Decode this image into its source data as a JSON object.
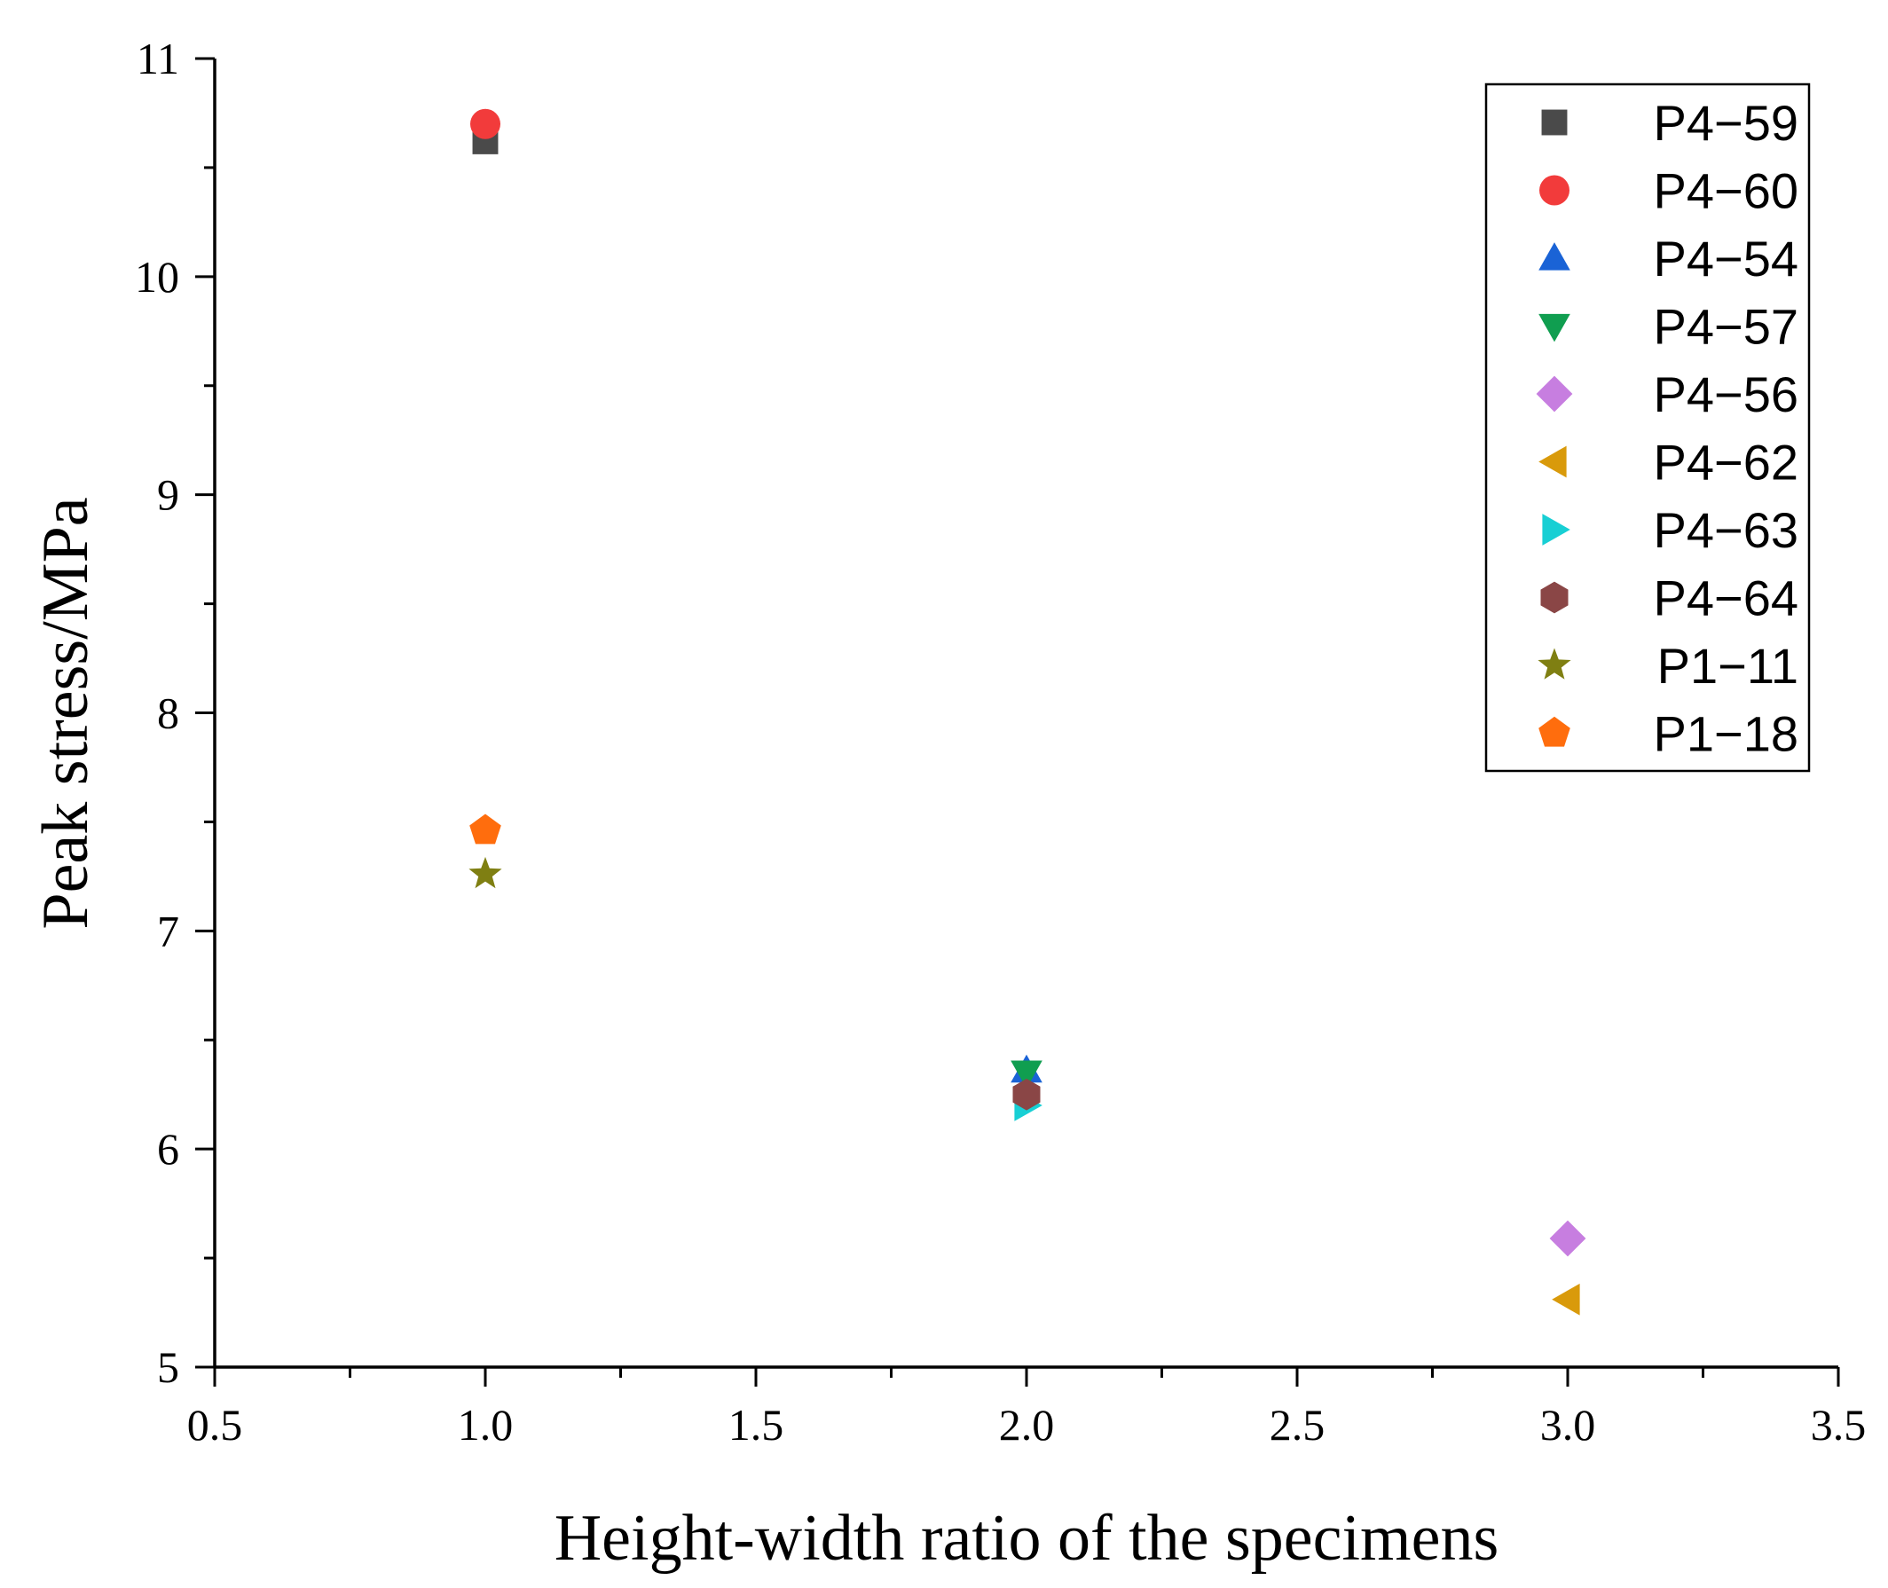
{
  "chart_data": {
    "type": "scatter",
    "xlabel": "Height-width ratio of the specimens",
    "ylabel": "Peak stress/MPa",
    "xlim": [
      0.5,
      3.5
    ],
    "ylim": [
      5,
      11
    ],
    "xticks": [
      "0.5",
      "1.0",
      "1.5",
      "2.0",
      "2.5",
      "3.0",
      "3.5"
    ],
    "yticks": [
      "5",
      "6",
      "7",
      "8",
      "9",
      "10",
      "11"
    ],
    "legend_position": "top-right",
    "series": [
      {
        "name": "P4−59",
        "marker": "square",
        "color": "#4a4a4a",
        "x": [
          1.0
        ],
        "y": [
          10.62
        ]
      },
      {
        "name": "P4−60",
        "marker": "circle",
        "color": "#f23b3b",
        "x": [
          1.0
        ],
        "y": [
          10.7
        ]
      },
      {
        "name": "P4−54",
        "marker": "triangle-up",
        "color": "#1a63d6",
        "x": [
          2.0
        ],
        "y": [
          6.36
        ]
      },
      {
        "name": "P4−57",
        "marker": "triangle-down",
        "color": "#109e50",
        "x": [
          2.0
        ],
        "y": [
          6.35
        ]
      },
      {
        "name": "P4−56",
        "marker": "diamond",
        "color": "#c77ee0",
        "x": [
          3.0
        ],
        "y": [
          5.59
        ]
      },
      {
        "name": "P4−62",
        "marker": "triangle-left",
        "color": "#d99a0b",
        "x": [
          3.0
        ],
        "y": [
          5.31
        ]
      },
      {
        "name": "P4−63",
        "marker": "triangle-right",
        "color": "#18cfd4",
        "x": [
          2.0
        ],
        "y": [
          6.2
        ]
      },
      {
        "name": "P4−64",
        "marker": "hexagon",
        "color": "#8a4646",
        "x": [
          2.0
        ],
        "y": [
          6.25
        ]
      },
      {
        "name": "P1−11",
        "marker": "star",
        "color": "#7f7f12",
        "x": [
          1.0
        ],
        "y": [
          7.26
        ]
      },
      {
        "name": "P1−18",
        "marker": "pentagon",
        "color": "#ff6d0d",
        "x": [
          1.0
        ],
        "y": [
          7.46
        ]
      }
    ]
  }
}
